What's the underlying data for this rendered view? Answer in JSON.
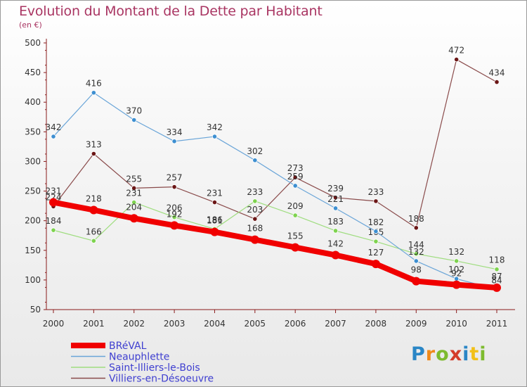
{
  "chart_title": "Evolution du Montant de la Dette par Habitant",
  "chart_subtitle": "(en €)",
  "logo_text": "Proxiti",
  "chart_data": {
    "type": "line",
    "title": "Evolution du Montant de la Dette par Habitant",
    "subtitle": "(en €)",
    "xlabel": "",
    "ylabel": "",
    "ylim": [
      50,
      500
    ],
    "yticks": [
      50,
      100,
      150,
      200,
      250,
      300,
      350,
      400,
      450,
      500
    ],
    "grid": false,
    "legend_position": "bottom-left",
    "categories": [
      "2000",
      "2001",
      "2002",
      "2003",
      "2004",
      "2005",
      "2006",
      "2007",
      "2008",
      "2009",
      "2010",
      "2011"
    ],
    "series": [
      {
        "name": "Villiers-en-Désoeuvre",
        "color": "#6b1616",
        "line_color": "#8a4b4b",
        "width": 1.2,
        "values": [
          224,
          313,
          255,
          257,
          231,
          203,
          273,
          239,
          233,
          188,
          472,
          434
        ]
      },
      {
        "name": "Saint-Illiers-le-Bois",
        "color": "#7ed34f",
        "line_color": "#9fdd7f",
        "width": 1.2,
        "values": [
          184,
          166,
          231,
          206,
          186,
          233,
          209,
          183,
          165,
          144,
          132,
          118
        ]
      },
      {
        "name": "Neauphlette",
        "color": "#3d8fd1",
        "line_color": "#6aa5d8",
        "width": 1.2,
        "values": [
          342,
          416,
          370,
          334,
          342,
          302,
          259,
          221,
          182,
          132,
          102,
          84
        ]
      },
      {
        "name": "BRéVAL",
        "color": "#f00000",
        "line_color": "#f00000",
        "width": 8,
        "values": [
          231,
          218,
          204,
          192,
          181,
          168,
          155,
          142,
          127,
          98,
          92,
          87
        ]
      }
    ],
    "legend": [
      "BRéVAL",
      "Neauphlette",
      "Saint-Illiers-le-Bois",
      "Villiers-en-Désoeuvre"
    ],
    "legend_color": "#3f3fd0"
  }
}
